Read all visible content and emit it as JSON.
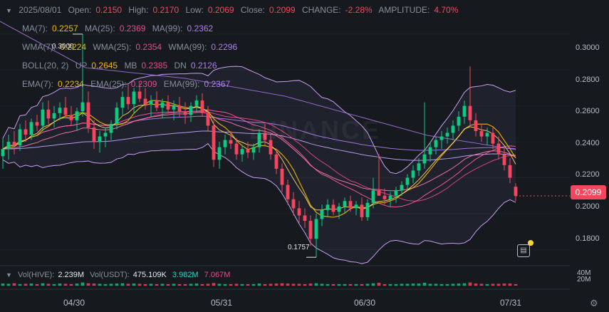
{
  "ohlc": {
    "date": "2025/08/01",
    "open_label": "Open:",
    "open": "0.2150",
    "high_label": "High:",
    "high": "0.2170",
    "low_label": "Low:",
    "low": "0.2069",
    "close_label": "Close:",
    "close": "0.2099",
    "change_label": "CHANGE:",
    "change": "-2.28%",
    "amplitude_label": "AMPLITUDE:",
    "amplitude": "4.70%"
  },
  "ma": {
    "ma7_label": "MA(7):",
    "ma7": "0.2257",
    "ma25_label": "MA(25):",
    "ma25": "0.2369",
    "ma99_label": "MA(99):",
    "ma99": "0.2362"
  },
  "wma": {
    "wma7_label": "WMA(7):",
    "wma7": "0.2224",
    "wma25_label": "WMA(25):",
    "wma25": "0.2354",
    "wma99_label": "WMA(99):",
    "wma99": "0.2296"
  },
  "boll": {
    "label": "BOLL(20, 2)",
    "up_label": "UP",
    "up": "0.2645",
    "mb_label": "MB",
    "mb": "0.2385",
    "dn_label": "DN",
    "dn": "0.2126"
  },
  "ema": {
    "ema7_label": "EMA(7):",
    "ema7": "0.2234",
    "ema25_label": "EMA(25):",
    "ema25": "0.2309",
    "ema99_label": "EMA(99):",
    "ema99": "0.2367"
  },
  "high_marker": "0.3000",
  "low_marker": "0.1757",
  "current_price": "0.2099",
  "volume": {
    "vol_base_label": "Vol(HIVE):",
    "vol_base": "2.239M",
    "vol_quote_label": "Vol(USDT):",
    "vol_quote": "475.109K",
    "ma5": "3.982M",
    "ma10": "7.067M",
    "axis_top": "40M",
    "axis_bottom": "20M"
  },
  "icons": {
    "collapse": "chevron-down-icon",
    "settings": "gear-icon",
    "notes": "note-icon"
  },
  "colors": {
    "up": "#0ecb81",
    "down": "#f6465d",
    "ma7": "#f0b90b",
    "ma25": "#e84a8a",
    "ma99": "#b07cf0",
    "boll_band": "#c8a0f0",
    "bg": "#161a1e"
  },
  "chart_data": {
    "type": "candlestick",
    "title": "",
    "y_ticks": [
      "0.3000",
      "0.2800",
      "0.2600",
      "0.2400",
      "0.2200",
      "0.2000",
      "0.1800"
    ],
    "ylim": [
      0.171,
      0.319
    ],
    "x_ticks": [
      "04/30",
      "05/31",
      "06/30",
      "07/31"
    ],
    "candles": [
      [
        0.232,
        0.242,
        0.225,
        0.236
      ],
      [
        0.236,
        0.244,
        0.23,
        0.24
      ],
      [
        0.24,
        0.246,
        0.233,
        0.238
      ],
      [
        0.238,
        0.25,
        0.235,
        0.247
      ],
      [
        0.247,
        0.252,
        0.24,
        0.244
      ],
      [
        0.244,
        0.253,
        0.241,
        0.251
      ],
      [
        0.251,
        0.255,
        0.246,
        0.249
      ],
      [
        0.249,
        0.262,
        0.246,
        0.258
      ],
      [
        0.258,
        0.263,
        0.25,
        0.253
      ],
      [
        0.253,
        0.26,
        0.248,
        0.256
      ],
      [
        0.256,
        0.262,
        0.252,
        0.259
      ],
      [
        0.259,
        0.265,
        0.253,
        0.255
      ],
      [
        0.255,
        0.26,
        0.249,
        0.252
      ],
      [
        0.252,
        0.259,
        0.246,
        0.257
      ],
      [
        0.257,
        0.3,
        0.254,
        0.262
      ],
      [
        0.262,
        0.268,
        0.245,
        0.248
      ],
      [
        0.248,
        0.252,
        0.236,
        0.24
      ],
      [
        0.24,
        0.246,
        0.234,
        0.243
      ],
      [
        0.243,
        0.248,
        0.237,
        0.245
      ],
      [
        0.245,
        0.252,
        0.241,
        0.25
      ],
      [
        0.25,
        0.262,
        0.247,
        0.259
      ],
      [
        0.259,
        0.268,
        0.255,
        0.265
      ],
      [
        0.265,
        0.272,
        0.258,
        0.261
      ],
      [
        0.261,
        0.27,
        0.256,
        0.268
      ],
      [
        0.268,
        0.273,
        0.262,
        0.264
      ],
      [
        0.264,
        0.27,
        0.258,
        0.261
      ],
      [
        0.261,
        0.266,
        0.254,
        0.263
      ],
      [
        0.263,
        0.268,
        0.257,
        0.259
      ],
      [
        0.259,
        0.264,
        0.253,
        0.262
      ],
      [
        0.262,
        0.266,
        0.256,
        0.258
      ],
      [
        0.258,
        0.263,
        0.252,
        0.26
      ],
      [
        0.26,
        0.265,
        0.254,
        0.257
      ],
      [
        0.257,
        0.262,
        0.25,
        0.255
      ],
      [
        0.255,
        0.262,
        0.251,
        0.26
      ],
      [
        0.26,
        0.266,
        0.256,
        0.263
      ],
      [
        0.263,
        0.267,
        0.254,
        0.256
      ],
      [
        0.256,
        0.26,
        0.246,
        0.249
      ],
      [
        0.249,
        0.252,
        0.226,
        0.23
      ],
      [
        0.23,
        0.24,
        0.225,
        0.237
      ],
      [
        0.237,
        0.244,
        0.233,
        0.241
      ],
      [
        0.241,
        0.246,
        0.236,
        0.239
      ],
      [
        0.239,
        0.242,
        0.23,
        0.233
      ],
      [
        0.233,
        0.238,
        0.229,
        0.236
      ],
      [
        0.236,
        0.24,
        0.231,
        0.234
      ],
      [
        0.234,
        0.239,
        0.23,
        0.237
      ],
      [
        0.237,
        0.247,
        0.234,
        0.245
      ],
      [
        0.245,
        0.25,
        0.238,
        0.241
      ],
      [
        0.241,
        0.244,
        0.23,
        0.233
      ],
      [
        0.233,
        0.236,
        0.222,
        0.225
      ],
      [
        0.225,
        0.228,
        0.212,
        0.216
      ],
      [
        0.216,
        0.219,
        0.205,
        0.208
      ],
      [
        0.208,
        0.212,
        0.199,
        0.203
      ],
      [
        0.203,
        0.207,
        0.195,
        0.199
      ],
      [
        0.199,
        0.203,
        0.192,
        0.196
      ],
      [
        0.196,
        0.199,
        0.182,
        0.186
      ],
      [
        0.186,
        0.2,
        0.1757,
        0.197
      ],
      [
        0.197,
        0.205,
        0.193,
        0.202
      ],
      [
        0.202,
        0.208,
        0.198,
        0.205
      ],
      [
        0.205,
        0.208,
        0.199,
        0.201
      ],
      [
        0.201,
        0.206,
        0.197,
        0.204
      ],
      [
        0.204,
        0.209,
        0.2,
        0.207
      ],
      [
        0.207,
        0.21,
        0.201,
        0.203
      ],
      [
        0.203,
        0.207,
        0.199,
        0.205
      ],
      [
        0.205,
        0.209,
        0.196,
        0.198
      ],
      [
        0.198,
        0.208,
        0.196,
        0.206
      ],
      [
        0.206,
        0.22,
        0.203,
        0.213
      ],
      [
        0.213,
        0.233,
        0.21,
        0.21
      ],
      [
        0.21,
        0.214,
        0.205,
        0.208
      ],
      [
        0.208,
        0.212,
        0.204,
        0.21
      ],
      [
        0.21,
        0.215,
        0.206,
        0.213
      ],
      [
        0.213,
        0.218,
        0.21,
        0.216
      ],
      [
        0.216,
        0.222,
        0.213,
        0.22
      ],
      [
        0.22,
        0.227,
        0.217,
        0.224
      ],
      [
        0.224,
        0.231,
        0.221,
        0.228
      ],
      [
        0.228,
        0.262,
        0.225,
        0.233
      ],
      [
        0.233,
        0.24,
        0.229,
        0.237
      ],
      [
        0.237,
        0.243,
        0.233,
        0.241
      ],
      [
        0.241,
        0.246,
        0.236,
        0.243
      ],
      [
        0.243,
        0.248,
        0.239,
        0.245
      ],
      [
        0.245,
        0.252,
        0.241,
        0.249
      ],
      [
        0.249,
        0.257,
        0.246,
        0.254
      ],
      [
        0.254,
        0.263,
        0.25,
        0.26
      ],
      [
        0.26,
        0.282,
        0.248,
        0.252
      ],
      [
        0.252,
        0.256,
        0.243,
        0.246
      ],
      [
        0.246,
        0.25,
        0.24,
        0.243
      ],
      [
        0.243,
        0.248,
        0.238,
        0.245
      ],
      [
        0.245,
        0.248,
        0.236,
        0.239
      ],
      [
        0.239,
        0.243,
        0.23,
        0.233
      ],
      [
        0.233,
        0.237,
        0.224,
        0.227
      ],
      [
        0.227,
        0.231,
        0.217,
        0.22
      ],
      [
        0.215,
        0.217,
        0.2069,
        0.2099
      ]
    ],
    "volume": [
      8,
      7,
      9,
      6,
      7,
      8,
      6,
      9,
      7,
      6,
      8,
      7,
      6,
      8,
      12,
      9,
      8,
      7,
      6,
      7,
      8,
      9,
      7,
      8,
      7,
      6,
      7,
      6,
      7,
      6,
      7,
      6,
      6,
      7,
      8,
      6,
      7,
      10,
      7,
      6,
      6,
      7,
      6,
      6,
      6,
      8,
      6,
      7,
      8,
      9,
      8,
      7,
      7,
      6,
      8,
      9,
      7,
      6,
      6,
      6,
      6,
      6,
      6,
      6,
      7,
      9,
      11,
      6,
      6,
      6,
      7,
      7,
      8,
      8,
      11,
      7,
      7,
      6,
      6,
      7,
      8,
      9,
      12,
      8,
      7,
      6,
      7,
      7,
      8,
      8,
      6
    ]
  }
}
